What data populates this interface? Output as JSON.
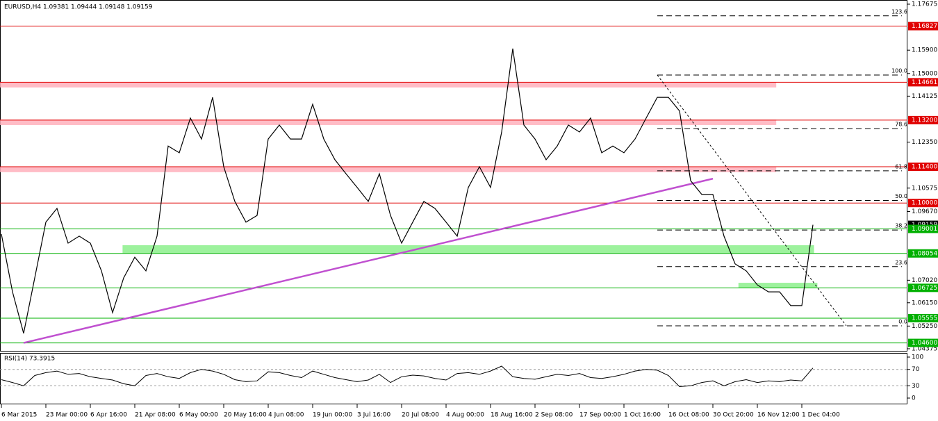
{
  "chart_data": {
    "type": "line",
    "title": "EURUSD,H4  1.09381 1.09444 1.09148 1.09159",
    "color": "#000000",
    "categories": [
      "6 Mar 2015",
      null,
      null,
      null,
      "23 Mar 00:00",
      null,
      null,
      null,
      "6 Apr 16:00",
      null,
      null,
      null,
      "21 Apr 08:00",
      null,
      null,
      null,
      "6 May 00:00",
      null,
      null,
      null,
      "20 May 16:00",
      null,
      null,
      null,
      "4 Jun 08:00",
      null,
      null,
      null,
      "19 Jun 00:00",
      null,
      null,
      null,
      "3 Jul 16:00",
      null,
      null,
      null,
      "20 Jul 08:00",
      null,
      null,
      null,
      "4 Aug 00:00",
      null,
      null,
      null,
      "18 Aug 16:00",
      null,
      null,
      null,
      "2 Sep 08:00",
      null,
      null,
      null,
      "17 Sep 00:00",
      null,
      null,
      null,
      "1 Oct 16:00",
      null,
      null,
      null,
      "16 Oct 08:00",
      null,
      null,
      null,
      "30 Oct 20:00",
      null,
      null,
      null,
      "16 Nov 12:00",
      null,
      null,
      null,
      "1 Dec 04:00",
      null
    ],
    "values": [
      1.088,
      1.0657,
      1.0497,
      1.0711,
      1.0926,
      1.0979,
      1.0845,
      1.0872,
      1.0845,
      1.0738,
      1.0577,
      1.0711,
      1.0791,
      1.0738,
      1.0872,
      1.122,
      1.1194,
      1.1328,
      1.1247,
      1.1408,
      1.114,
      1.1006,
      1.0926,
      1.0952,
      1.1247,
      1.1301,
      1.1247,
      1.1247,
      1.1381,
      1.1247,
      1.1167,
      1.1113,
      1.106,
      1.1006,
      1.1113,
      1.0952,
      1.0845,
      1.0926,
      1.1006,
      1.0979,
      1.0926,
      1.0872,
      1.106,
      1.114,
      1.106,
      1.1274,
      1.1596,
      1.1301,
      1.1247,
      1.1167,
      1.122,
      1.1301,
      1.1274,
      1.1328,
      1.1194,
      1.122,
      1.1194,
      1.1247,
      1.1328,
      1.1408,
      1.1408,
      1.1355,
      1.1086,
      1.1033,
      1.1033,
      1.0872,
      1.0765,
      1.0738,
      1.0684,
      1.0657,
      1.0657,
      1.0604,
      1.0604,
      1.09159
    ],
    "xlim": [
      -0.125,
      81.5
    ],
    "ylim": [
      1.04294,
      1.17836
    ],
    "yticks": [
      {
        "value": 1.17675,
        "label": "1.17675"
      },
      {
        "value": 1.159,
        "label": "1.15900"
      },
      {
        "value": 1.15,
        "label": "1.15000"
      },
      {
        "value": 1.14125,
        "label": "1.14125"
      },
      {
        "value": 1.1235,
        "label": "1.12350"
      },
      {
        "value": 1.10575,
        "label": "1.10575"
      },
      {
        "value": 1.0967,
        "label": "1.09670"
      },
      {
        "value": 1.0702,
        "label": "1.07020"
      },
      {
        "value": 1.0615,
        "label": "1.06150"
      },
      {
        "value": 1.0525,
        "label": "1.05250"
      },
      {
        "value": 1.04375,
        "label": "1.04375"
      }
    ],
    "levels": [
      {
        "value": 1.16827,
        "label": "1.16827",
        "color": "#e00000"
      },
      {
        "value": 1.14661,
        "label": "1.14661",
        "color": "#e00000"
      },
      {
        "value": 1.132,
        "label": "1.13200",
        "color": "#e00000"
      },
      {
        "value": 1.114,
        "label": "1.11400",
        "color": "#e00000"
      },
      {
        "value": 1.1,
        "label": "1.10000",
        "color": "#e00000"
      },
      {
        "value": 1.09159,
        "label": "1.09159",
        "color": "#000000"
      },
      {
        "value": 1.09001,
        "label": "1.09001",
        "color": "#00b000"
      },
      {
        "value": 1.08054,
        "label": "1.08054",
        "color": "#00b000"
      },
      {
        "value": 1.06725,
        "label": "1.06725",
        "color": "#00b000"
      },
      {
        "value": 1.05555,
        "label": "1.05555",
        "color": "#00b000"
      },
      {
        "value": 1.046,
        "label": "1.04600",
        "color": "#00b000"
      }
    ],
    "zones": [
      {
        "from": 1.1446,
        "to": 1.1467,
        "start": -0.125,
        "end": 69.7,
        "color": "#ffb0bc"
      },
      {
        "from": 1.1301,
        "to": 1.1322,
        "start": -0.125,
        "end": 69.7,
        "color": "#ffb0bc"
      },
      {
        "from": 1.1119,
        "to": 1.114,
        "start": -0.125,
        "end": 69.7,
        "color": "#ffb0bc"
      },
      {
        "from": 1.0805,
        "to": 1.0837,
        "start": 10.9,
        "end": 73.1,
        "color": "#8cf08c"
      },
      {
        "from": 1.0673,
        "to": 1.0692,
        "start": 66.3,
        "end": 73.4,
        "color": "#8cf08c"
      }
    ],
    "trendlines": [
      {
        "color": "#c050d0",
        "dash": false,
        "x": [
          2,
          64
        ],
        "y": [
          1.046,
          1.1094
        ]
      },
      {
        "color": "#000000",
        "dash": true,
        "x": [
          59,
          76
        ],
        "y": [
          1.1494,
          1.0526
        ]
      }
    ],
    "fib": {
      "start": 59,
      "end": 81,
      "low": 1.0526,
      "high": 1.1494,
      "levels": [
        {
          "value": 123.6,
          "label": "123.6"
        },
        {
          "value": 100,
          "label": "100.0"
        },
        {
          "value": 78.6,
          "label": "78.6"
        },
        {
          "value": 61.8,
          "label": "61.8"
        },
        {
          "value": 50,
          "label": "50.0"
        },
        {
          "value": 38.2,
          "label": "38.2"
        },
        {
          "value": 23.6,
          "label": "23.6"
        },
        {
          "value": 0,
          "label": "0.0"
        }
      ]
    },
    "rsi": {
      "title": "RSI(14) 73.3915",
      "ylim": [
        0,
        100
      ],
      "yticks": [
        100,
        70,
        30,
        0
      ],
      "levels": [
        70,
        30
      ],
      "values": [
        45,
        38,
        30,
        55,
        62,
        66,
        58,
        60,
        52,
        48,
        44,
        35,
        30,
        55,
        60,
        52,
        48,
        62,
        70,
        66,
        58,
        45,
        40,
        42,
        64,
        62,
        55,
        50,
        66,
        58,
        50,
        45,
        40,
        44,
        58,
        38,
        52,
        56,
        54,
        48,
        44,
        60,
        62,
        58,
        66,
        78,
        52,
        48,
        46,
        52,
        58,
        55,
        60,
        50,
        48,
        52,
        58,
        66,
        70,
        68,
        55,
        28,
        30,
        38,
        42,
        30,
        40,
        45,
        38,
        42,
        40,
        44,
        42,
        73.3915
      ]
    }
  }
}
